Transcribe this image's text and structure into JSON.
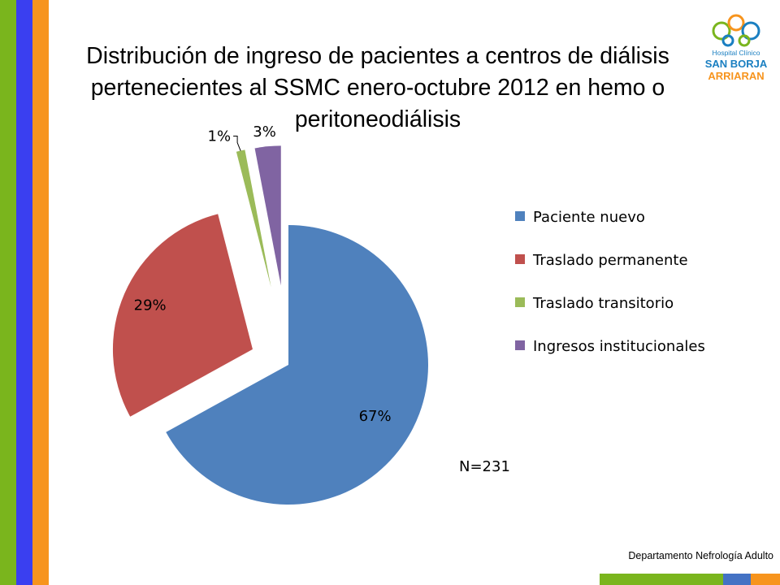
{
  "slide": {
    "title": "Distribución de ingreso de pacientes a centros de diálisis pertenecientes al SSMC enero-octubre 2012 en hemo o peritoneodiálisis",
    "note": "N=231",
    "footer": "Departamento Nefrología Adulto",
    "logo": {
      "line1": "Hospital Clínico",
      "line2": "SAN BORJA",
      "line3": "ARRIARAN"
    },
    "colors": {
      "stripe_green": "#7ab51d",
      "stripe_blue": "#3a3ff0",
      "stripe_orange": "#f7941d",
      "bar_blue": "#4472c4",
      "logo_blue": "#1a7fc1",
      "logo_orange": "#f7941d",
      "logo_green": "#7ab51d"
    }
  },
  "chart_data": {
    "type": "pie",
    "title": "",
    "legend_position": "right",
    "exploded": true,
    "categories": [
      "Paciente nuevo",
      "Traslado permanente",
      "Traslado transitorio",
      "Ingresos institucionales"
    ],
    "values": [
      67,
      29,
      1,
      3
    ],
    "labels": [
      "67%",
      "29%",
      "1%",
      "3%"
    ],
    "colors": [
      "#4f81bd",
      "#c0504d",
      "#9bbb59",
      "#8064a2"
    ]
  }
}
